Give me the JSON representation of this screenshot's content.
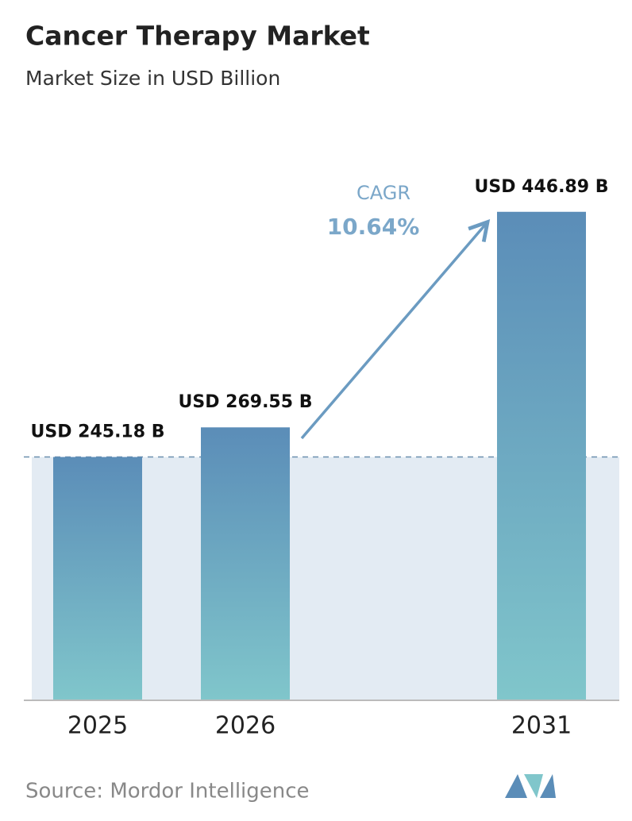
{
  "chart_data": {
    "type": "bar",
    "title": "Cancer Therapy Market",
    "subtitle": "Market Size in USD Billion",
    "categories": [
      "2025",
      "2026",
      "2031"
    ],
    "values": [
      245.18,
      269.55,
      446.89
    ],
    "value_labels": [
      "USD 245.18 B",
      "USD 269.55 B",
      "USD 446.89 B"
    ],
    "ylim": [
      45,
      450
    ],
    "annotations": {
      "cagr_label": "CAGR",
      "cagr_value": "10.64%"
    },
    "source": "Source: Mordor Intelligence"
  }
}
